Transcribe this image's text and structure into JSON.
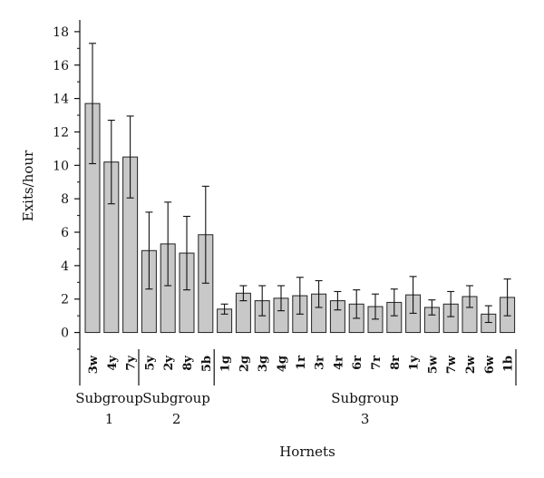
{
  "chart_data": {
    "type": "bar",
    "xlabel": "Hornets",
    "ylabel": "Exits/hour",
    "ylim": [
      -1,
      18.7
    ],
    "yticks": [
      0,
      2,
      4,
      6,
      8,
      10,
      12,
      14,
      16,
      18
    ],
    "bar_color": "#c8c8c8",
    "edge_color": "#222222",
    "categories": [
      "3w",
      "4y",
      "7y",
      "5y",
      "2y",
      "8y",
      "5b",
      "1g",
      "2g",
      "3g",
      "4g",
      "1r",
      "3r",
      "4r",
      "6r",
      "7r",
      "8r",
      "1y",
      "5w",
      "7w",
      "2w",
      "6w",
      "1b"
    ],
    "values": [
      13.7,
      10.2,
      10.5,
      4.9,
      5.3,
      4.75,
      5.85,
      1.4,
      2.35,
      1.9,
      2.05,
      2.2,
      2.3,
      1.9,
      1.7,
      1.55,
      1.8,
      2.25,
      1.5,
      1.7,
      2.15,
      1.1,
      2.1
    ],
    "errors": [
      3.6,
      2.5,
      2.45,
      2.3,
      2.5,
      2.2,
      2.9,
      0.3,
      0.45,
      0.9,
      0.75,
      1.1,
      0.8,
      0.55,
      0.85,
      0.75,
      0.8,
      1.1,
      0.45,
      0.75,
      0.65,
      0.5,
      1.1
    ],
    "groups": [
      {
        "label_line1": "Subgroup",
        "label_line2": "1",
        "start": 0,
        "end": 2
      },
      {
        "label_line1": "Subgroup",
        "label_line2": "2",
        "start": 3,
        "end": 6
      },
      {
        "label_line1": "Subgroup",
        "label_line2": "3",
        "start": 7,
        "end": 22
      }
    ]
  }
}
